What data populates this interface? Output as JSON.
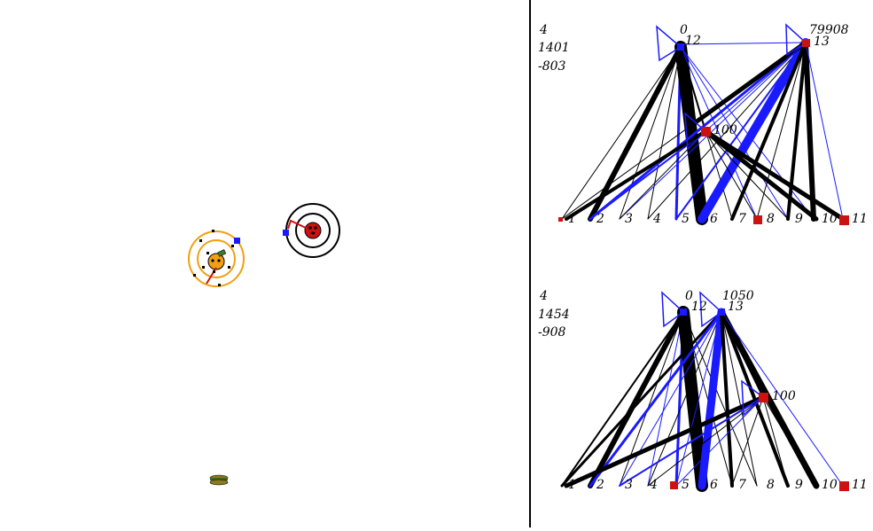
{
  "colors": {
    "blue": "#1a1aff",
    "red": "#cc1111",
    "orange": "#f0a010",
    "black": "#000000",
    "olive": "#8a8a2a"
  },
  "arena": {
    "agents": [
      {
        "name": "orange-agent",
        "ring_color": "#f0a010",
        "body_color": "#f0a010"
      },
      {
        "name": "red-agent",
        "ring_color": "#000000",
        "body_color": "#cc1111"
      }
    ],
    "food_icon": "burger-icon"
  },
  "networks": [
    {
      "stats": [
        "4",
        "1401",
        "-803"
      ],
      "top_value": "79908",
      "nodes": [
        {
          "id": "0",
          "label": "0"
        },
        {
          "id": "12",
          "label": "12"
        },
        {
          "id": "13",
          "label": "13"
        },
        {
          "id": "100",
          "label": "100"
        },
        {
          "id": "1",
          "label": "1"
        },
        {
          "id": "2",
          "label": "2"
        },
        {
          "id": "3",
          "label": "3"
        },
        {
          "id": "4",
          "label": "4"
        },
        {
          "id": "5",
          "label": "5"
        },
        {
          "id": "6",
          "label": "6"
        },
        {
          "id": "7",
          "label": "7"
        },
        {
          "id": "8",
          "label": "8"
        },
        {
          "id": "9",
          "label": "9"
        },
        {
          "id": "10",
          "label": "10"
        },
        {
          "id": "11",
          "label": "11"
        }
      ]
    },
    {
      "stats": [
        "4",
        "1454",
        "-908"
      ],
      "top_value": "1050",
      "nodes": [
        {
          "id": "0",
          "label": "0"
        },
        {
          "id": "12",
          "label": "12"
        },
        {
          "id": "13",
          "label": "13"
        },
        {
          "id": "100",
          "label": "100"
        },
        {
          "id": "1",
          "label": "1"
        },
        {
          "id": "2",
          "label": "2"
        },
        {
          "id": "3",
          "label": "3"
        },
        {
          "id": "4",
          "label": "4"
        },
        {
          "id": "5",
          "label": "5"
        },
        {
          "id": "6",
          "label": "6"
        },
        {
          "id": "7",
          "label": "7"
        },
        {
          "id": "8",
          "label": "8"
        },
        {
          "id": "9",
          "label": "9"
        },
        {
          "id": "10",
          "label": "10"
        },
        {
          "id": "11",
          "label": "11"
        }
      ]
    }
  ]
}
